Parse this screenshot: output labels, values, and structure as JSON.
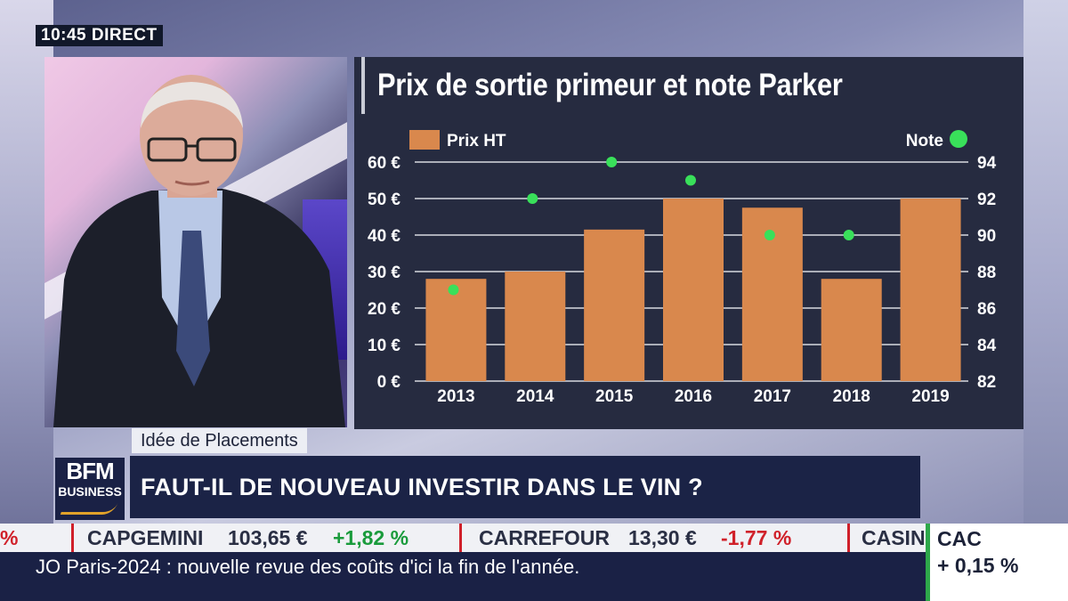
{
  "overlay": {
    "clock": "10:45 DIRECT"
  },
  "chart_data": {
    "type": "bar",
    "title": "Prix de sortie primeur et note Parker",
    "categories": [
      "2013",
      "2014",
      "2015",
      "2016",
      "2017",
      "2018",
      "2019"
    ],
    "series": [
      {
        "name": "Prix HT",
        "type": "bar",
        "axis": "left",
        "color": "#d9884d",
        "values": [
          28,
          30,
          41.5,
          50,
          47.5,
          28,
          50
        ]
      },
      {
        "name": "Note",
        "type": "scatter",
        "axis": "right",
        "color": "#39e05a",
        "values": [
          87,
          92,
          94,
          93,
          90,
          90,
          null
        ]
      }
    ],
    "y_left": {
      "ticks": [
        "0 €",
        "10 €",
        "20 €",
        "30 €",
        "40 €",
        "50 €",
        "60 €"
      ],
      "lim": [
        0,
        60
      ]
    },
    "y_right": {
      "ticks": [
        "82",
        "84",
        "86",
        "88",
        "90",
        "92",
        "94"
      ],
      "lim": [
        82,
        94
      ]
    },
    "grid": true,
    "legend": {
      "left": "Prix HT",
      "right": "Note"
    }
  },
  "lower_third": {
    "tag": "Idée de Placements",
    "logo_top": "BFM",
    "logo_bottom": "BUSINESS",
    "headline": "FAUT-IL DE NOUVEAU INVESTIR DANS LE VIN ?"
  },
  "ticker": {
    "items": [
      {
        "name": "",
        "price": "",
        "change": "% "
      },
      {
        "name": "CAPGEMINI",
        "price": "103,65 €",
        "change": "+1,82 %"
      },
      {
        "name": "CARREFOUR",
        "price": "13,30 €",
        "change": "-1,77 %"
      },
      {
        "name": "CASIN",
        "price": "",
        "change": ""
      }
    ],
    "news": "JO Paris-2024 : nouvelle revue des coûts d'ici la fin de l'année."
  },
  "index": {
    "name": "CAC",
    "change": "+ 0,15 %",
    "color": "#2ea84a"
  }
}
